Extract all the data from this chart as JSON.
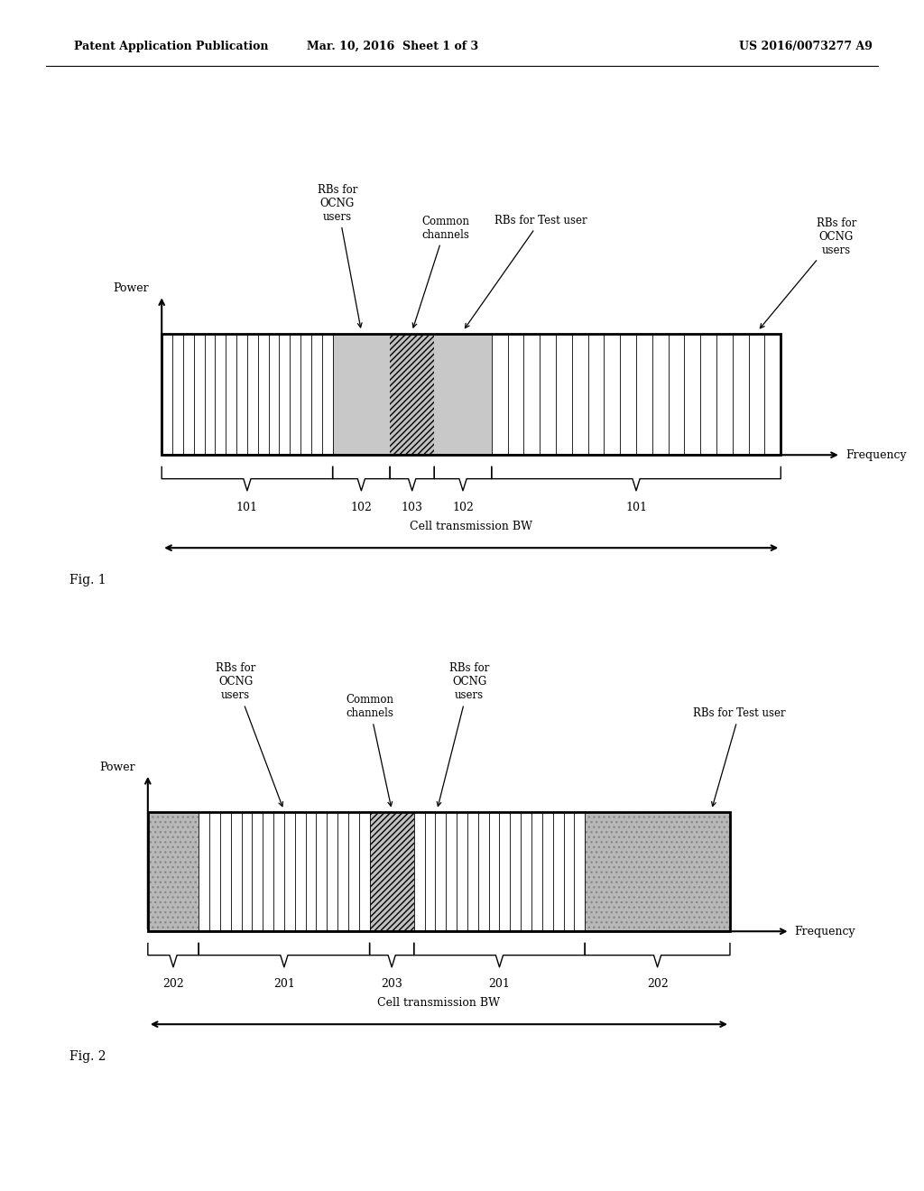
{
  "header_left": "Patent Application Publication",
  "header_mid": "Mar. 10, 2016  Sheet 1 of 3",
  "header_right": "US 2016/0073277 A9",
  "fig1_label": "Fig. 1",
  "fig2_label": "Fig. 2",
  "bg_color": "#ffffff"
}
